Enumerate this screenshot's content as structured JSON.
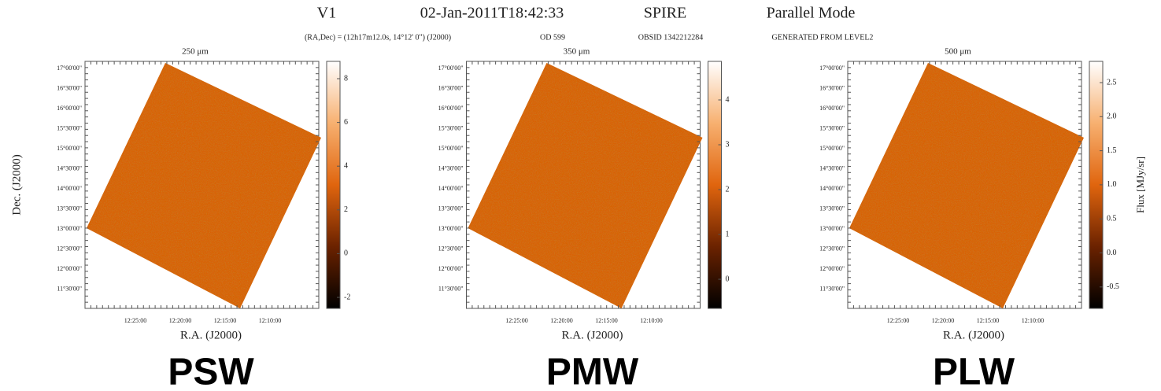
{
  "header": {
    "items": [
      "V1",
      "02-Jan-2011T18:42:33",
      "SPIRE",
      "Parallel Mode"
    ],
    "subitems": [
      "(RA,Dec) = (12h17m12.0s, 14°12' 0\") (J2000)",
      "OD 599",
      "OBSID 1342212284",
      "GENERATED FROM LEVEL2"
    ]
  },
  "axes": {
    "dec_label": "Dec. (J2000)",
    "ra_label": "R.A. (J2000)",
    "colorbar_label": "Flux [MJy/sr]",
    "dec_ticks": [
      "17°00'00\"",
      "16°30'00\"",
      "16°00'00\"",
      "15°30'00\"",
      "15°00'00\"",
      "14°30'00\"",
      "14°00'00\"",
      "13°30'00\"",
      "13°00'00\"",
      "12°30'00\"",
      "12°00'00\"",
      "11°30'00\""
    ],
    "ra_ticks": [
      "12:25:00",
      "12:20:00",
      "12:15:00",
      "12:10:00"
    ]
  },
  "panels": [
    {
      "wavelength": "250 μm",
      "name": "PSW",
      "colorbar_ticks": [
        "8",
        "6",
        "4",
        "2",
        "0",
        "-2"
      ]
    },
    {
      "wavelength": "350 μm",
      "name": "PMW",
      "colorbar_ticks": [
        "4",
        "3",
        "2",
        "1",
        "0"
      ]
    },
    {
      "wavelength": "500 μm",
      "name": "PLW",
      "colorbar_ticks": [
        "2.5",
        "2.0",
        "1.5",
        "1.0",
        "0.5",
        "0.0",
        "-0.5"
      ]
    }
  ]
}
